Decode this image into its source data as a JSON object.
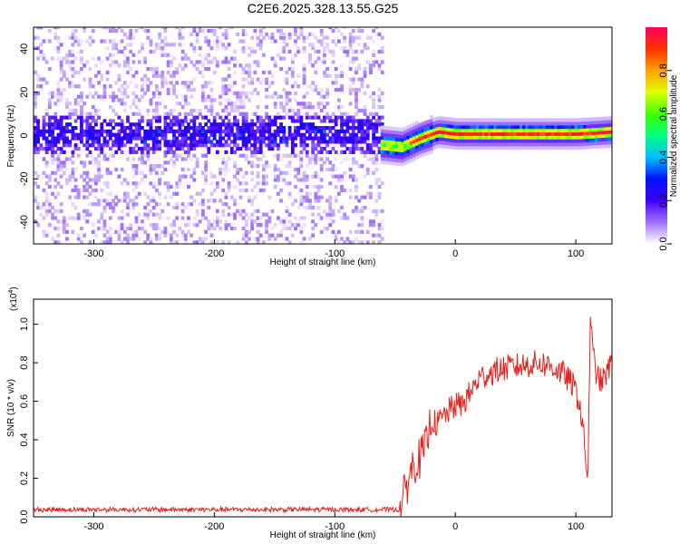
{
  "figure_title": "C2E6.2025.328.13.55.G25",
  "chart_data": [
    {
      "type": "heatmap",
      "name": "spectrogram",
      "xlabel": "Height of straight line (km)",
      "ylabel": "Frequency (Hz)",
      "xlim": [
        -350,
        130
      ],
      "ylim": [
        -50,
        50
      ],
      "xticks": [
        -300,
        -200,
        -100,
        0,
        100
      ],
      "yticks": [
        -40,
        -20,
        0,
        20,
        40
      ],
      "noise_region_end_km": -62,
      "signal_center_hz": [
        {
          "x": -62,
          "y": -5
        },
        {
          "x": -45,
          "y": -6
        },
        {
          "x": -30,
          "y": -2
        },
        {
          "x": -15,
          "y": 1
        },
        {
          "x": 0,
          "y": 0
        },
        {
          "x": 50,
          "y": 0
        },
        {
          "x": 100,
          "y": 0
        },
        {
          "x": 130,
          "y": 1
        }
      ],
      "colorbar": {
        "label": "Normalized spectral amplitude",
        "range": [
          0,
          1
        ],
        "ticks": [
          "0.0",
          "0.2",
          "0.4",
          "0.6",
          "0.8"
        ],
        "colors": [
          "#ffffff",
          "#a070ff",
          "#4000ff",
          "#0010ff",
          "#00c0ff",
          "#00ff80",
          "#40ff00",
          "#e0ff00",
          "#ffa000",
          "#ff3000",
          "#ff0060"
        ]
      }
    },
    {
      "type": "line",
      "name": "snr",
      "xlabel": "Height of straight line (km)",
      "ylabel": "SNR (10 * v/v)",
      "scale_label": "(x10",
      "scale_exponent": "4",
      "scale_close": ")",
      "xlim": [
        -350,
        130
      ],
      "ylim": [
        0,
        1.13
      ],
      "xticks": [
        -300,
        -200,
        -100,
        0,
        100
      ],
      "yticks": [
        "0.0",
        "0.2",
        "0.4",
        "0.6",
        "0.8",
        "1.0"
      ],
      "color": "#e8201c",
      "series": [
        {
          "name": "SNR",
          "points": [
            [
              -350,
              0.03
            ],
            [
              -300,
              0.03
            ],
            [
              -250,
              0.03
            ],
            [
              -200,
              0.03
            ],
            [
              -150,
              0.03
            ],
            [
              -100,
              0.03
            ],
            [
              -60,
              0.03
            ],
            [
              -46,
              0.03
            ],
            [
              -42,
              0.12
            ],
            [
              -38,
              0.22
            ],
            [
              -34,
              0.28
            ],
            [
              -30,
              0.3
            ],
            [
              -25,
              0.35
            ],
            [
              -20,
              0.5
            ],
            [
              -15,
              0.48
            ],
            [
              -10,
              0.52
            ],
            [
              -5,
              0.55
            ],
            [
              0,
              0.58
            ],
            [
              5,
              0.58
            ],
            [
              10,
              0.62
            ],
            [
              20,
              0.72
            ],
            [
              30,
              0.75
            ],
            [
              40,
              0.77
            ],
            [
              50,
              0.78
            ],
            [
              60,
              0.79
            ],
            [
              70,
              0.8
            ],
            [
              80,
              0.78
            ],
            [
              90,
              0.74
            ],
            [
              98,
              0.68
            ],
            [
              103,
              0.6
            ],
            [
              106,
              0.45
            ],
            [
              109,
              0.25
            ],
            [
              110,
              0.2
            ],
            [
              111,
              0.6
            ],
            [
              112,
              1.05
            ],
            [
              114,
              0.85
            ],
            [
              118,
              0.72
            ],
            [
              122,
              0.7
            ],
            [
              126,
              0.75
            ],
            [
              130,
              0.8
            ]
          ]
        }
      ]
    }
  ]
}
